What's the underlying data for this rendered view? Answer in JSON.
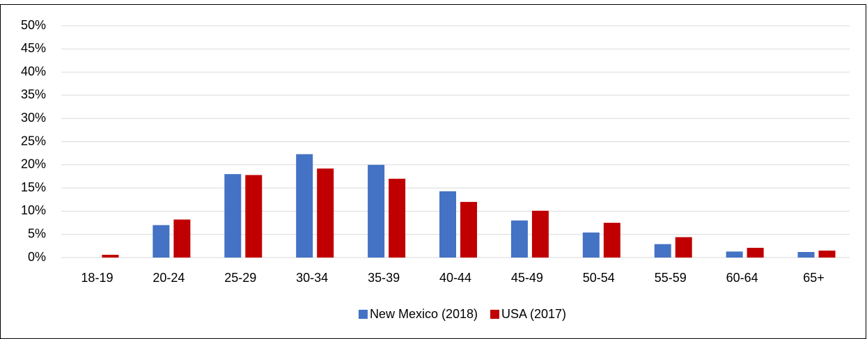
{
  "chart_data": {
    "type": "bar",
    "categories": [
      "18-19",
      "20-24",
      "25-29",
      "30-34",
      "35-39",
      "40-44",
      "45-49",
      "50-54",
      "55-59",
      "60-64",
      "65+"
    ],
    "series": [
      {
        "name": "New Mexico (2018)",
        "color": "#4472c4",
        "values": [
          0,
          7,
          18,
          22.3,
          20,
          14.3,
          8,
          5.4,
          2.9,
          1.3,
          1.2
        ]
      },
      {
        "name": "USA (2017)",
        "color": "#c00000",
        "values": [
          0.6,
          8.2,
          17.8,
          19.2,
          17,
          12,
          10.1,
          7.5,
          4.4,
          2.1,
          1.5
        ]
      }
    ],
    "ylim": [
      0,
      50
    ],
    "yticks": [
      {
        "value": 0,
        "label": "0%"
      },
      {
        "value": 5,
        "label": "5%"
      },
      {
        "value": 10,
        "label": "10%"
      },
      {
        "value": 15,
        "label": "15%"
      },
      {
        "value": 20,
        "label": "20%"
      },
      {
        "value": 25,
        "label": "25%"
      },
      {
        "value": 30,
        "label": "30%"
      },
      {
        "value": 35,
        "label": "35%"
      },
      {
        "value": 40,
        "label": "40%"
      },
      {
        "value": 45,
        "label": "45%"
      },
      {
        "value": 50,
        "label": "50%"
      }
    ],
    "grid": true,
    "legend": "bottom"
  }
}
